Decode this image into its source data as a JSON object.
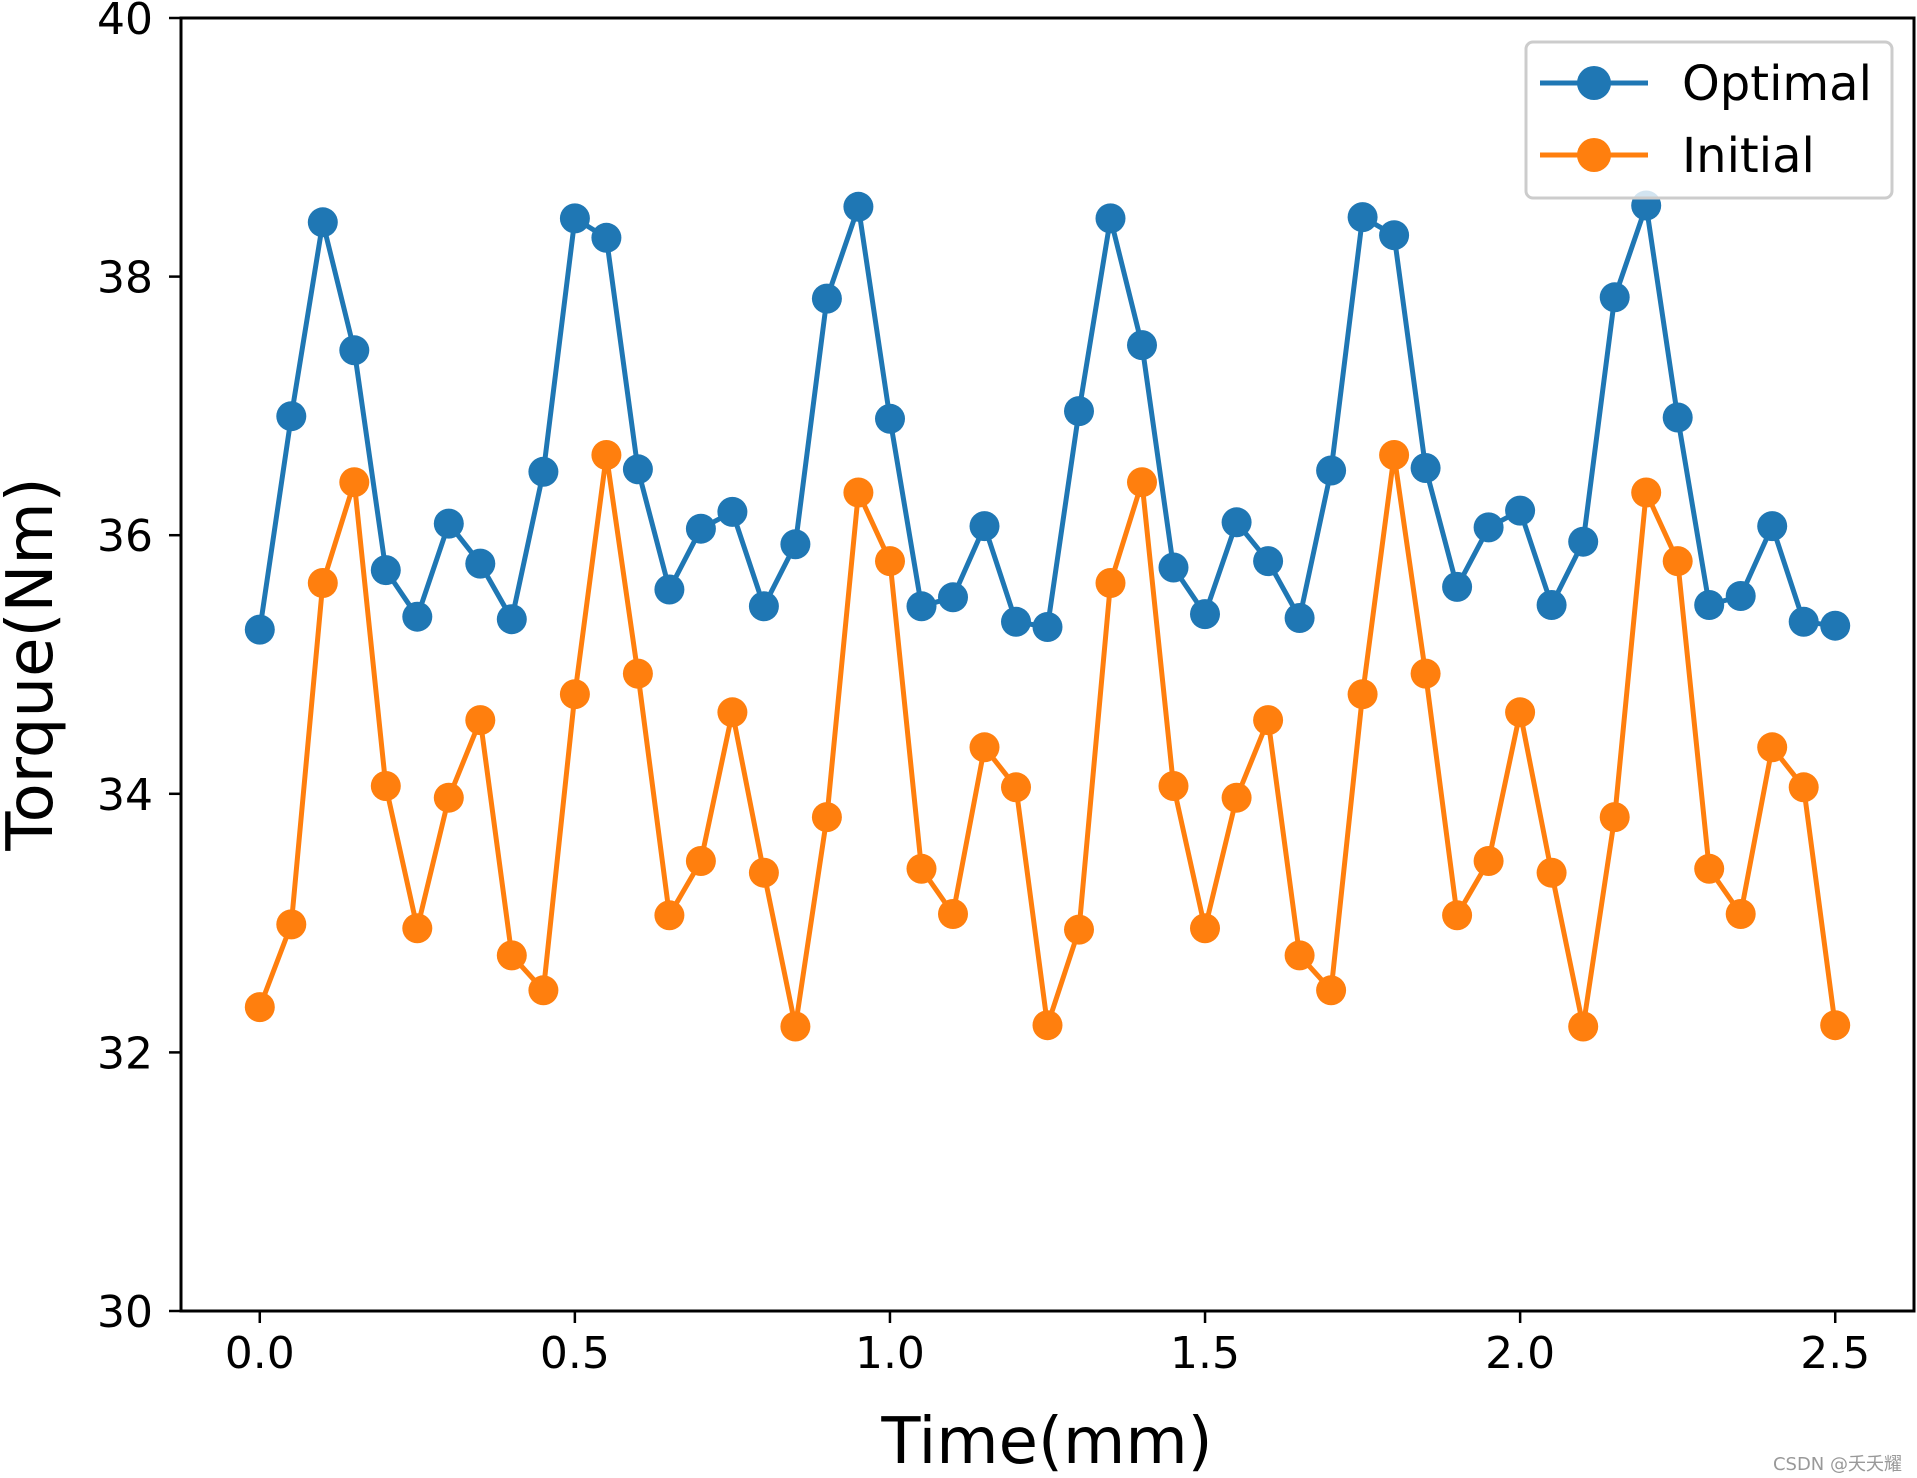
{
  "chart_data": {
    "type": "line",
    "title": "",
    "xlabel": "Time(mm)",
    "ylabel": "Torque(Nm)",
    "xlim": [
      -0.125,
      2.625
    ],
    "ylim": [
      30,
      40
    ],
    "xticks": [
      0.0,
      0.5,
      1.0,
      1.5,
      2.0,
      2.5
    ],
    "xtick_labels": [
      "0.0",
      "0.5",
      "1.0",
      "1.5",
      "2.0",
      "2.5"
    ],
    "yticks": [
      30,
      32,
      34,
      36,
      38,
      40
    ],
    "ytick_labels": [
      "30",
      "32",
      "34",
      "36",
      "38",
      "40"
    ],
    "grid": false,
    "legend_position": "top-right",
    "x": [
      0.0,
      0.05,
      0.1,
      0.15,
      0.2,
      0.25,
      0.3,
      0.35,
      0.4,
      0.45,
      0.5,
      0.55,
      0.6,
      0.65,
      0.7,
      0.75,
      0.8,
      0.85,
      0.9,
      0.95,
      1.0,
      1.05,
      1.1,
      1.15,
      1.2,
      1.25,
      1.3,
      1.35,
      1.4,
      1.45,
      1.5,
      1.55,
      1.6,
      1.65,
      1.7,
      1.75,
      1.8,
      1.85,
      1.9,
      1.95,
      2.0,
      2.05,
      2.1,
      2.15,
      2.2,
      2.25,
      2.3,
      2.35,
      2.4,
      2.45,
      2.5
    ],
    "series": [
      {
        "name": "Optimal",
        "color": "#1f77b4",
        "values": [
          35.27,
          36.92,
          38.42,
          37.43,
          35.73,
          35.37,
          36.09,
          35.78,
          35.35,
          36.49,
          38.45,
          38.3,
          36.51,
          35.58,
          36.05,
          36.18,
          35.45,
          35.93,
          37.83,
          38.54,
          36.9,
          35.45,
          35.52,
          36.07,
          35.33,
          35.29,
          36.96,
          38.45,
          37.47,
          35.75,
          35.39,
          36.1,
          35.8,
          35.36,
          36.5,
          38.46,
          38.32,
          36.52,
          35.6,
          36.06,
          36.19,
          35.46,
          35.95,
          37.84,
          38.55,
          36.91,
          35.46,
          35.53,
          36.07,
          35.33,
          35.3
        ]
      },
      {
        "name": "Initial",
        "color": "#ff7f0e",
        "values": [
          32.35,
          32.99,
          35.63,
          36.41,
          34.06,
          32.96,
          33.97,
          34.57,
          32.75,
          32.48,
          34.77,
          36.62,
          34.93,
          33.06,
          33.48,
          34.63,
          33.39,
          32.2,
          33.82,
          36.33,
          35.8,
          33.42,
          33.07,
          34.36,
          34.05,
          32.21,
          32.95,
          35.63,
          36.41,
          34.06,
          32.96,
          33.97,
          34.57,
          32.75,
          32.48,
          34.77,
          36.62,
          34.93,
          33.06,
          33.48,
          34.63,
          33.39,
          32.2,
          33.82,
          36.33,
          35.8,
          33.42,
          33.07,
          34.36,
          34.05,
          32.21
        ]
      }
    ]
  },
  "watermark": "CSDN @夭夭耀"
}
